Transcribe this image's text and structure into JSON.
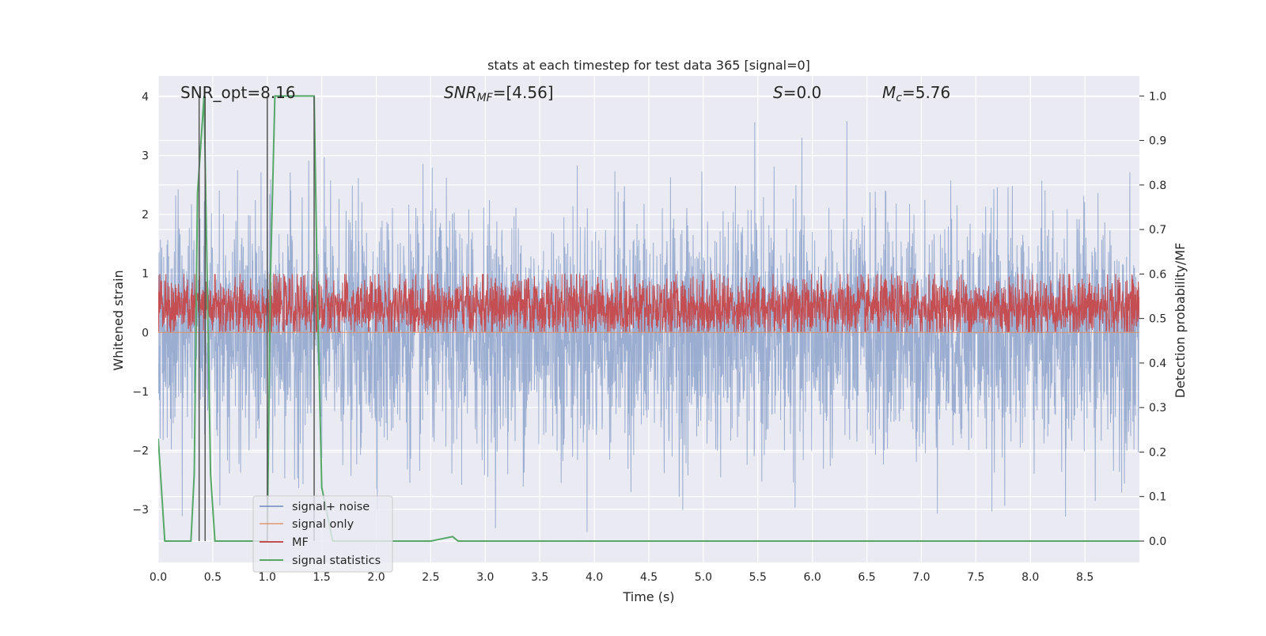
{
  "chart_data": {
    "type": "line",
    "title": "stats at each timestep for test data 365 [signal=0]",
    "xlabel": "Time (s)",
    "ylabel_left": "Whitened strain",
    "ylabel_right": "Detection probability/MF",
    "xlim": [
      0.0,
      9.0
    ],
    "ylim_left": [
      -3.9,
      4.35
    ],
    "ylim_right": [
      -0.048,
      1.045
    ],
    "x_ticks": [
      0.0,
      0.5,
      1.0,
      1.5,
      2.0,
      2.5,
      3.0,
      3.5,
      4.0,
      4.5,
      5.0,
      5.5,
      6.0,
      6.5,
      7.0,
      7.5,
      8.0,
      8.5
    ],
    "x_tick_labels": [
      "0.0",
      "0.5",
      "1.0",
      "1.5",
      "2.0",
      "2.5",
      "3.0",
      "3.5",
      "4.0",
      "4.5",
      "5.0",
      "5.5",
      "6.0",
      "6.5",
      "7.0",
      "7.5",
      "8.0",
      "8.5"
    ],
    "y_left_ticks": [
      -3,
      -2,
      -1,
      0,
      1,
      2,
      3,
      4
    ],
    "y_left_tick_labels": [
      "−3",
      "−2",
      "−1",
      "0",
      "1",
      "2",
      "3",
      "4"
    ],
    "y_right_ticks": [
      0.0,
      0.1,
      0.2,
      0.3,
      0.4,
      0.5,
      0.6,
      0.7,
      0.8,
      0.9,
      1.0
    ],
    "y_right_tick_labels": [
      "0.0",
      "0.1",
      "0.2",
      "0.3",
      "0.4",
      "0.5",
      "0.6",
      "0.7",
      "0.8",
      "0.9",
      "1.0"
    ],
    "annotations": {
      "snr_opt": "SNR_opt=8.16",
      "snr_mf_sym": "SNR",
      "snr_mf_sub": "MF",
      "snr_mf_val": "=[4.56]",
      "s_sym": "S",
      "s_val": "=0.0",
      "mc_sym": "M",
      "mc_sub": "c",
      "mc_val": "=5.76"
    },
    "vertical_markers": [
      0.375,
      0.43,
      1.0,
      1.43
    ],
    "series": [
      {
        "name": "signal+ noise",
        "axis": "left",
        "color": "#4c72b0",
        "style": "noise",
        "n_points": 3600,
        "mean": 0.0,
        "std": 1.0,
        "max": 4.0,
        "min": -3.5
      },
      {
        "name": "signal only",
        "axis": "left",
        "color": "#dd8452",
        "style": "flat",
        "value": 0.0
      },
      {
        "name": "MF",
        "axis": "right",
        "color": "#c44e52",
        "style": "noise",
        "n_points": 3600,
        "mean": 0.525,
        "std": 0.035,
        "max": 0.6,
        "min": 0.47
      },
      {
        "name": "signal statistics",
        "axis": "right",
        "color": "#55a868",
        "style": "line",
        "x": [
          0.0,
          0.06,
          0.12,
          0.3,
          0.33,
          0.36,
          0.42,
          0.48,
          0.52,
          0.55,
          0.6,
          1.0,
          1.03,
          1.07,
          1.1,
          1.43,
          1.46,
          1.5,
          1.6,
          2.5,
          2.6,
          2.7,
          2.75,
          9.0
        ],
        "y": [
          0.23,
          0.0,
          0.0,
          0.0,
          0.15,
          0.78,
          1.0,
          0.15,
          0.0,
          0.0,
          0.0,
          0.0,
          0.6,
          1.0,
          1.0,
          1.0,
          0.55,
          0.12,
          0.0,
          0.0,
          0.005,
          0.01,
          0.0,
          0.0
        ]
      }
    ],
    "legend": [
      "signal+ noise",
      "signal only",
      "MF",
      "signal statistics"
    ],
    "legend_loc": "lower-left",
    "grid": true,
    "colors": {
      "background": "#eaeaf2",
      "grid": "#ffffff",
      "marker": "#555555"
    }
  }
}
